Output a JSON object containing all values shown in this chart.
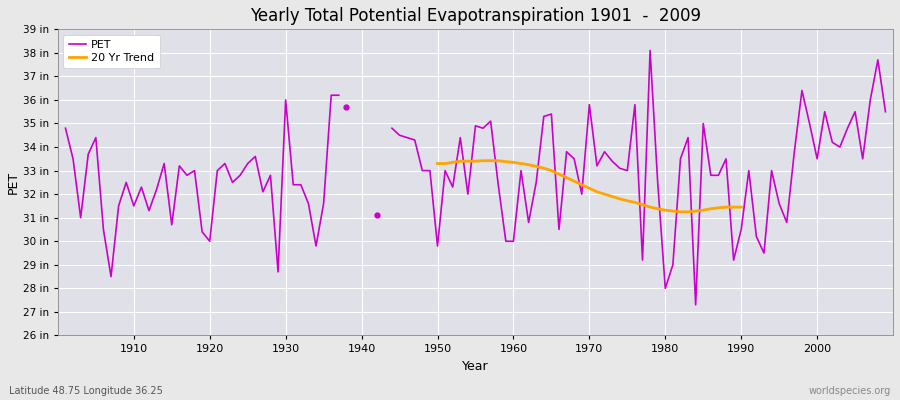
{
  "title": "Yearly Total Potential Evapotranspiration 1901  -  2009",
  "xlabel": "Year",
  "ylabel": "PET",
  "subtitle_left": "Latitude 48.75 Longitude 36.25",
  "subtitle_right": "worldspecies.org",
  "background_color": "#e8e8e8",
  "plot_bg_color": "#e0e0e8",
  "pet_color": "#cc00cc",
  "trend_color": "#ffa500",
  "ylim": [
    26,
    39
  ],
  "xlim": [
    1900,
    2010
  ],
  "ytick_labels": [
    "26 in",
    "27 in",
    "28 in",
    "29 in",
    "30 in",
    "31 in",
    "32 in",
    "33 in",
    "34 in",
    "35 in",
    "36 in",
    "37 in",
    "38 in",
    "39 in"
  ],
  "ytick_values": [
    26,
    27,
    28,
    29,
    30,
    31,
    32,
    33,
    34,
    35,
    36,
    37,
    38,
    39
  ],
  "years": [
    1901,
    1902,
    1903,
    1904,
    1905,
    1906,
    1907,
    1908,
    1909,
    1910,
    1911,
    1912,
    1913,
    1914,
    1915,
    1916,
    1917,
    1918,
    1919,
    1920,
    1921,
    1922,
    1923,
    1924,
    1925,
    1926,
    1927,
    1928,
    1929,
    1930,
    1931,
    1932,
    1933,
    1934,
    1935,
    1936,
    1937,
    1938,
    1939,
    1940,
    1941,
    1942,
    1943,
    1944,
    1945,
    1946,
    1947,
    1948,
    1949,
    1950,
    1951,
    1952,
    1953,
    1954,
    1955,
    1956,
    1957,
    1958,
    1959,
    1960,
    1961,
    1962,
    1963,
    1964,
    1965,
    1966,
    1967,
    1968,
    1969,
    1970,
    1971,
    1972,
    1973,
    1974,
    1975,
    1976,
    1977,
    1978,
    1979,
    1980,
    1981,
    1982,
    1983,
    1984,
    1985,
    1986,
    1987,
    1988,
    1989,
    1990,
    1991,
    1992,
    1993,
    1994,
    1995,
    1996,
    1997,
    1998,
    1999,
    2000,
    2001,
    2002,
    2003,
    2004,
    2005,
    2006,
    2007,
    2008,
    2009
  ],
  "pet_values": [
    34.8,
    33.5,
    31.0,
    33.7,
    34.4,
    30.5,
    28.5,
    31.5,
    32.5,
    31.5,
    32.3,
    31.3,
    32.2,
    33.3,
    30.7,
    33.2,
    32.8,
    33.0,
    30.4,
    30.0,
    33.0,
    33.3,
    32.5,
    32.8,
    33.3,
    33.6,
    32.1,
    32.8,
    28.7,
    36.0,
    32.4,
    32.4,
    31.6,
    29.8,
    31.6,
    36.2,
    36.2,
    35.7,
    null,
    null,
    null,
    31.1,
    null,
    34.8,
    34.5,
    34.4,
    34.3,
    33.0,
    33.0,
    29.8,
    33.0,
    32.3,
    34.4,
    32.0,
    34.9,
    34.8,
    35.1,
    32.4,
    30.0,
    30.0,
    33.0,
    30.8,
    32.5,
    35.3,
    35.4,
    30.5,
    33.8,
    33.5,
    32.0,
    35.8,
    33.2,
    33.8,
    33.4,
    33.1,
    33.0,
    35.8,
    29.2,
    38.1,
    32.5,
    28.0,
    29.0,
    33.5,
    34.4,
    27.3,
    35.0,
    32.8,
    32.8,
    33.5,
    29.2,
    30.5,
    33.0,
    30.2,
    29.5,
    33.0,
    31.6,
    30.8,
    33.8,
    36.4,
    35.0,
    33.5,
    35.5,
    34.2,
    34.0,
    34.8,
    35.5,
    33.5,
    36.0,
    37.7,
    35.5
  ],
  "seg1_end": 1937,
  "seg2_start": 1943,
  "isolated": [
    {
      "year": 1938,
      "value": 35.7
    },
    {
      "year": 1942,
      "value": 31.1
    }
  ],
  "trend_years": [
    1950,
    1951,
    1952,
    1953,
    1954,
    1955,
    1956,
    1957,
    1958,
    1959,
    1960,
    1961,
    1962,
    1963,
    1964,
    1965,
    1966,
    1967,
    1968,
    1969,
    1970,
    1971,
    1972,
    1973,
    1974,
    1975,
    1976,
    1977,
    1978,
    1979,
    1980,
    1981,
    1982,
    1983,
    1984,
    1985,
    1986,
    1987,
    1988,
    1989,
    1990
  ],
  "trend_values": [
    33.3,
    33.3,
    33.35,
    33.4,
    33.4,
    33.4,
    33.42,
    33.42,
    33.42,
    33.38,
    33.35,
    33.3,
    33.25,
    33.18,
    33.1,
    33.0,
    32.85,
    32.7,
    32.55,
    32.4,
    32.25,
    32.1,
    32.0,
    31.9,
    31.8,
    31.72,
    31.65,
    31.55,
    31.45,
    31.38,
    31.32,
    31.28,
    31.25,
    31.25,
    31.28,
    31.32,
    31.38,
    31.42,
    31.45,
    31.45,
    31.45
  ]
}
